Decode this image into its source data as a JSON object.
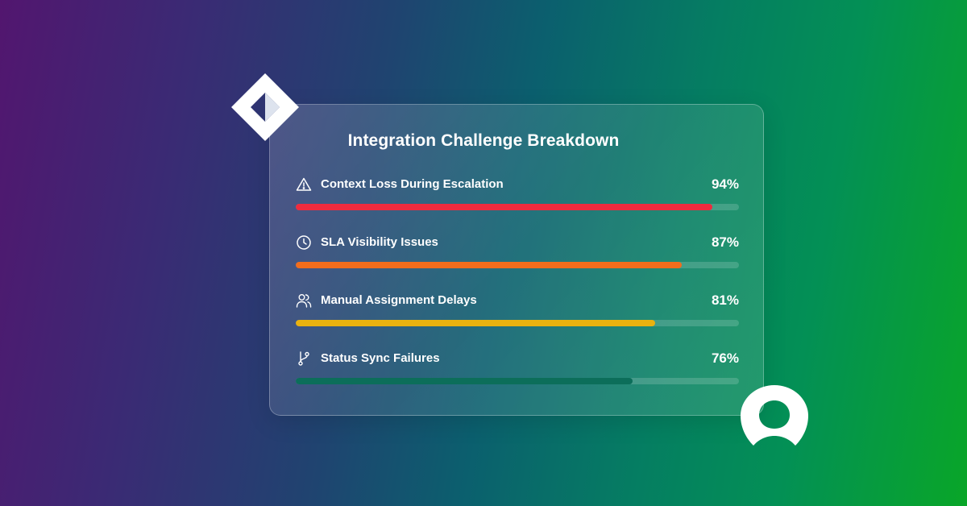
{
  "chart_data": {
    "type": "bar",
    "orientation": "horizontal",
    "title": "Integration Challenge Breakdown",
    "xlim": [
      0,
      100
    ],
    "grid": false,
    "items": [
      {
        "label": "Context Loss During Escalation",
        "value": 94,
        "display": "94%",
        "color": "#ef2b3e",
        "icon": "warning-icon"
      },
      {
        "label": "SLA Visibility Issues",
        "value": 87,
        "display": "87%",
        "color": "#f26d1c",
        "icon": "clock-icon"
      },
      {
        "label": "Manual Assignment Delays",
        "value": 81,
        "display": "81%",
        "color": "#eab20f",
        "icon": "users-icon"
      },
      {
        "label": "Status Sync Failures",
        "value": 76,
        "display": "76%",
        "color": "#0c6e5a",
        "icon": "git-branch-icon"
      }
    ]
  },
  "colors": {
    "track": "rgba(255,255,255,0.16)",
    "text": "#ffffff"
  },
  "decorations": {
    "top_left_logo": "diamond-logo-icon",
    "bottom_right_logo": "ring-logo-icon"
  }
}
